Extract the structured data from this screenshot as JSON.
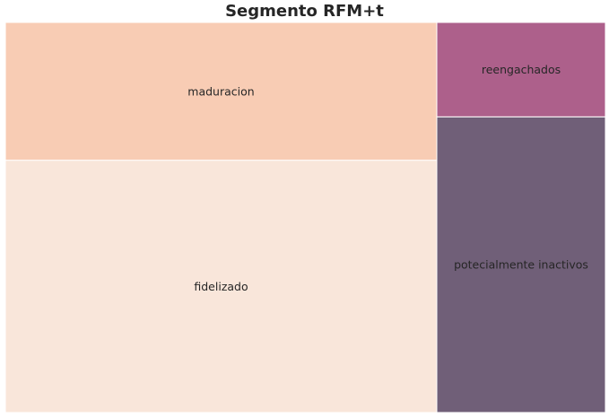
{
  "chart_data": {
    "type": "treemap",
    "title": "Segmento RFM+t",
    "segments": [
      {
        "label": "fidelizado",
        "value": 46.5,
        "color": "#f9e6da"
      },
      {
        "label": "maduracion",
        "value": 25.4,
        "color": "#f8ccb4"
      },
      {
        "label": "potecialmente inactivos",
        "value": 21.3,
        "color": "#705f78"
      },
      {
        "label": "reengachados",
        "value": 6.8,
        "color": "#ad608b"
      }
    ]
  }
}
